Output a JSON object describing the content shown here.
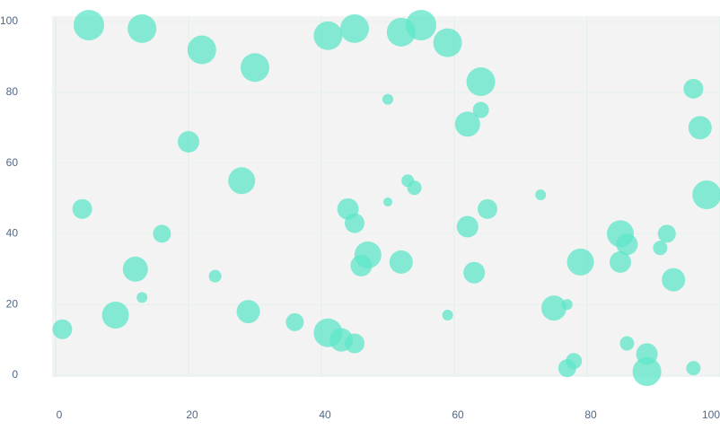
{
  "chart_data": {
    "type": "bubble",
    "color": "#5ee6c8",
    "x": [
      5,
      13,
      22,
      30,
      41,
      45,
      52,
      55,
      59,
      64,
      50,
      64,
      62,
      20,
      96,
      97,
      98,
      28,
      53,
      54,
      50,
      4,
      44,
      45,
      65,
      73,
      16,
      62,
      85,
      86,
      92,
      91,
      47,
      46,
      52,
      12,
      24,
      63,
      79,
      85,
      93,
      13,
      75,
      77,
      1,
      9,
      29,
      36,
      41,
      43,
      45,
      59,
      86,
      89,
      89,
      78,
      77,
      96
    ],
    "y": [
      99,
      98,
      92,
      87,
      96,
      98,
      97,
      99,
      94,
      83,
      78,
      75,
      71,
      66,
      81,
      70,
      51,
      55,
      55,
      53,
      49,
      47,
      47,
      43,
      47,
      51,
      40,
      42,
      40,
      37,
      40,
      36,
      34,
      31,
      32,
      30,
      28,
      29,
      32,
      32,
      27,
      22,
      19,
      20,
      13,
      17,
      18,
      15,
      12,
      10,
      9,
      17,
      9,
      6,
      1,
      4,
      2,
      2
    ],
    "sizes": [
      17,
      16,
      16,
      16,
      16,
      16,
      16,
      17,
      16,
      16,
      6,
      9,
      14,
      12,
      11,
      13,
      16,
      15,
      7,
      8,
      5,
      11,
      12,
      11,
      11,
      6,
      10,
      12,
      15,
      12,
      10,
      8,
      15,
      12,
      13,
      14,
      7,
      12,
      15,
      12,
      13,
      6,
      14,
      6,
      11,
      15,
      13,
      10,
      16,
      13,
      11,
      6,
      8,
      12,
      16,
      9,
      10,
      8
    ],
    "xlim": [
      0,
      100
    ],
    "ylim": [
      0,
      100
    ],
    "xticks": [
      0,
      20,
      40,
      60,
      80,
      100
    ],
    "yticks": [
      0,
      20,
      40,
      60,
      80,
      100
    ],
    "grid": true
  }
}
